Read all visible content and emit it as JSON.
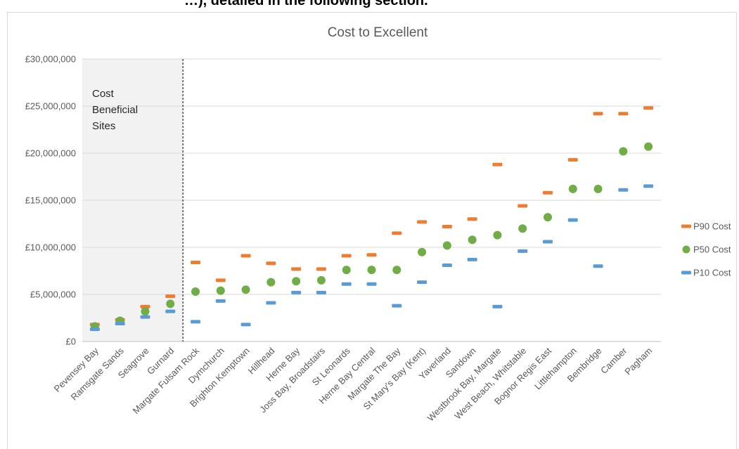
{
  "top_strip_text": "…), detailed in the following section.",
  "chart_data": {
    "type": "scatter",
    "title": "Cost to Excellent",
    "xlabel": "",
    "ylabel": "",
    "ylim": [
      0,
      30000000
    ],
    "yticks": [
      "£0",
      "£5,000,000",
      "£10,000,000",
      "£15,000,000",
      "£20,000,000",
      "£25,000,000",
      "£30,000,000"
    ],
    "grid": true,
    "legend_position": "right",
    "categories": [
      "Pevensey Bay",
      "Ramsgate Sands",
      "Seagrove",
      "Gurnard",
      "Margate Fulsam Rock",
      "Dymchurch",
      "Brighton Kemptown",
      "Hillhead",
      "Herne Bay",
      "Joss Bay, Broadstairs",
      "St Leonards",
      "Herne Bay Central",
      "Margate The Bay",
      "St Mary's Bay (Kent)",
      "Yaverland",
      "Sandown",
      "Westbrook Bay, Margate",
      "West Beach, Whitstable",
      "Bognor Regis East",
      "Littlehampton",
      "Bembridge",
      "Camber",
      "Pagham"
    ],
    "series": [
      {
        "name": "P90 Cost",
        "color": "#ED7D31",
        "marker": "dash",
        "values": [
          1800000,
          2300000,
          3700000,
          4800000,
          8400000,
          6500000,
          9100000,
          8300000,
          7700000,
          7700000,
          9100000,
          9200000,
          11500000,
          12700000,
          12200000,
          13000000,
          18800000,
          14400000,
          15800000,
          19300000,
          24200000,
          24200000,
          24800000
        ]
      },
      {
        "name": "P50 Cost",
        "color": "#70AD47",
        "marker": "circle",
        "values": [
          1600000,
          2200000,
          3200000,
          4000000,
          5300000,
          5400000,
          5500000,
          6300000,
          6400000,
          6500000,
          7600000,
          7600000,
          7600000,
          9500000,
          10200000,
          10800000,
          11300000,
          12000000,
          13200000,
          16200000,
          16200000,
          20200000,
          20700000
        ]
      },
      {
        "name": "P10 Cost",
        "color": "#5B9BD5",
        "marker": "dash",
        "values": [
          1300000,
          1900000,
          2600000,
          3200000,
          2100000,
          4300000,
          1800000,
          4100000,
          5200000,
          5200000,
          6100000,
          6100000,
          3800000,
          6300000,
          8100000,
          8700000,
          3700000,
          9600000,
          10600000,
          12900000,
          8000000,
          16100000,
          16500000
        ]
      }
    ],
    "annotation": {
      "lines": [
        "Cost",
        "Beneficial",
        "Sites"
      ],
      "region_categories": 4
    }
  }
}
